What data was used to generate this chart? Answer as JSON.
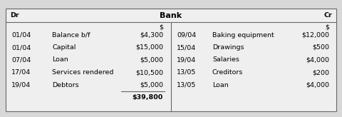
{
  "title": "Bank",
  "dr_label": "Dr",
  "cr_label": "Cr",
  "currency_symbol": "$",
  "dr_rows": [
    [
      "01/04",
      "Balance b/f",
      "$4,300"
    ],
    [
      "01/04",
      "Capital",
      "$15,000"
    ],
    [
      "07/04",
      "Loan",
      "$5,000"
    ],
    [
      "17/04",
      "Services rendered",
      "$10,500"
    ],
    [
      "19/04",
      "Debtors",
      "$5,000"
    ]
  ],
  "dr_total": "$39,800",
  "cr_rows": [
    [
      "09/04",
      "Baking equipment",
      "$12,000"
    ],
    [
      "15/04",
      "Drawings",
      "$500"
    ],
    [
      "19/04",
      "Salaries",
      "$4,000"
    ],
    [
      "13/05",
      "Creditors",
      "$200"
    ],
    [
      "13/05",
      "Loan",
      "$4,000"
    ]
  ],
  "bg_color": "#d8d8d8",
  "table_bg": "#efefef",
  "border_color": "#666666",
  "font_size": 6.8,
  "title_font_size": 8.0
}
